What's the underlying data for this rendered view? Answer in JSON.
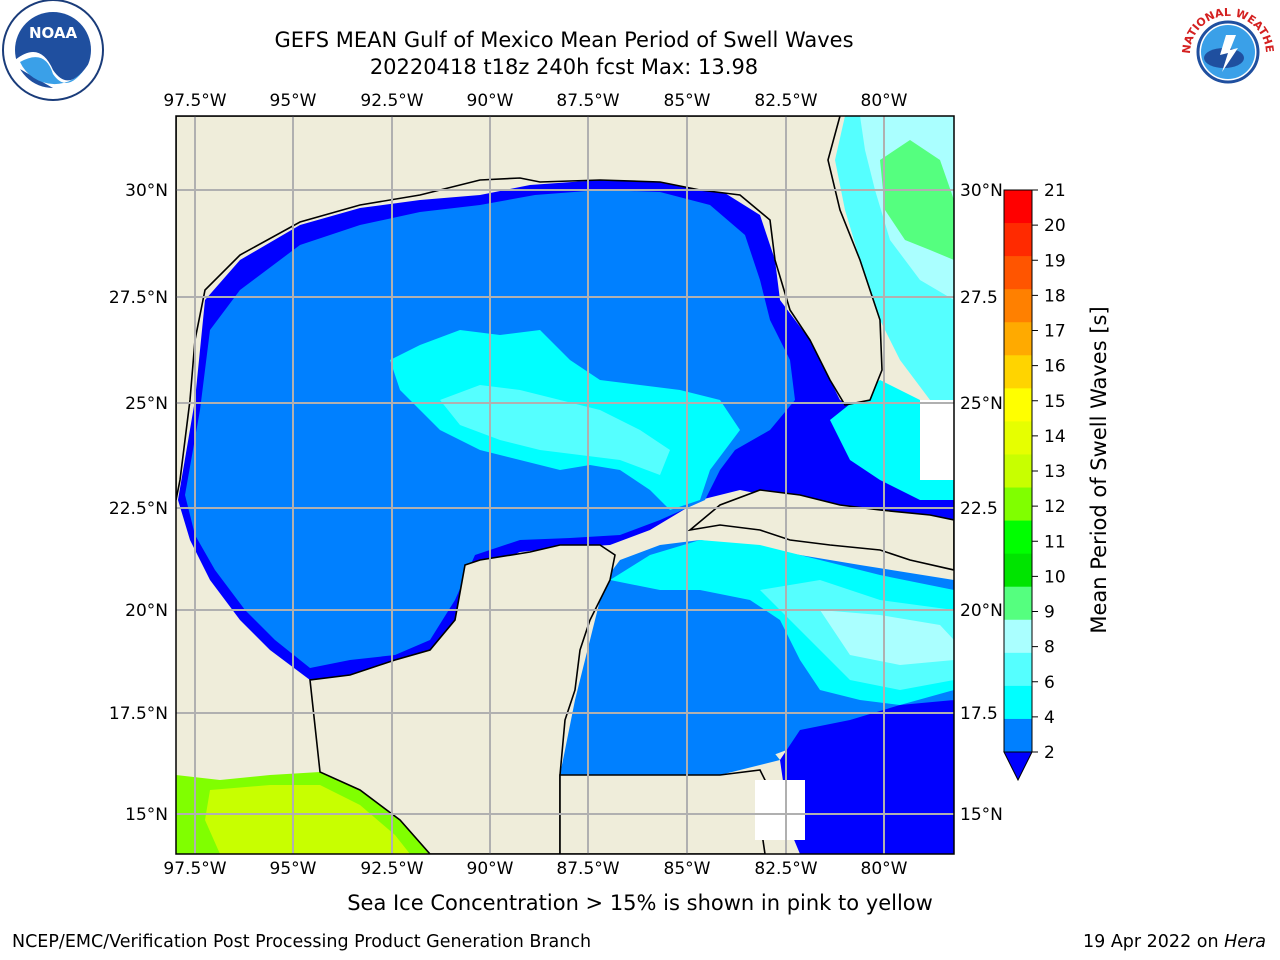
{
  "title": {
    "line1": "GEFS MEAN Gulf of Mexico Mean Period of Swell Waves",
    "line2": "20220418 t18z 240h fcst   Max: 13.98"
  },
  "map": {
    "lon_labels": [
      "97.5°W",
      "95°W",
      "92.5°W",
      "90°W",
      "87.5°W",
      "85°W",
      "82.5°W",
      "80°W"
    ],
    "lat_labels_left": [
      "30°N",
      "27.5°N",
      "25°N",
      "22.5°N",
      "20°N",
      "17.5°N",
      "15°N"
    ],
    "lat_labels_right": [
      "30°N",
      "27.5",
      "25°N",
      "22.5",
      "20°N",
      "17.5",
      "15°N"
    ],
    "colors": {
      "land": "#efedda",
      "ocean_deep": "#0000ff",
      "ocean_main": "#0080ff",
      "ocean_cyan": "#00ffff",
      "light_cyan": "#55ffff",
      "pale_cyan": "#aaffff",
      "green": "#55ff7f",
      "lime": "#c8ff00",
      "grid": "#b0b0b0"
    }
  },
  "colorbar": {
    "label": "Mean Period of Swell Waves [s]",
    "ticks": [
      "21",
      "20",
      "19",
      "18",
      "17",
      "16",
      "15",
      "14",
      "13",
      "12",
      "11",
      "10",
      "9",
      "8",
      "6",
      "4",
      "2"
    ],
    "colors": [
      "#ff0000",
      "#ff2a00",
      "#ff5500",
      "#ff8000",
      "#ffaa00",
      "#ffd400",
      "#ffff00",
      "#e6ff00",
      "#c8ff00",
      "#80ff00",
      "#00ff00",
      "#00e400",
      "#55ff7f",
      "#aaffff",
      "#55ffff",
      "#00ffff",
      "#0080ff"
    ],
    "extend_color": "#0000ff"
  },
  "caption": "Sea Ice Concentration > 15% is shown in pink to yellow",
  "footer": {
    "left": "NCEP/EMC/Verification Post Processing Product Generation Branch",
    "right_date": "19 Apr 2022 on ",
    "right_host": "Hera"
  },
  "logos": {
    "noaa_text": "NOAA",
    "nws_text": "NATIONAL WEATHER SERVICE"
  }
}
